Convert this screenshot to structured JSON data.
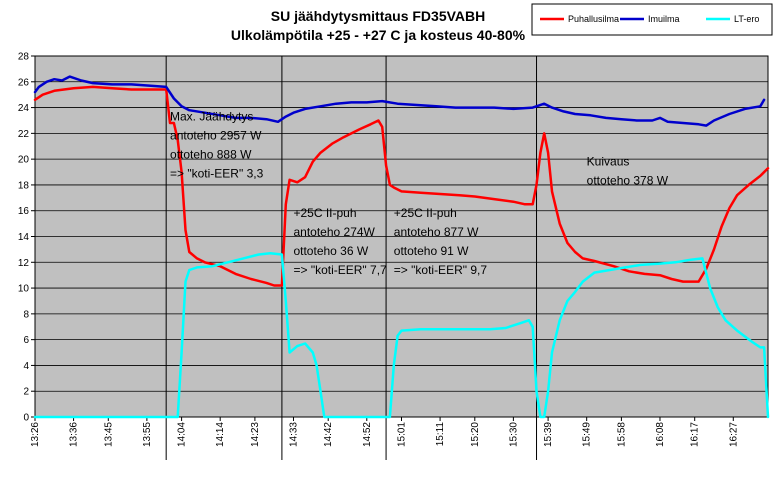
{
  "chart_data": {
    "type": "line",
    "title": "SU jäähdytysmittaus FD35VABH",
    "subtitle": "Ulkolämpötila +25 - +27 C ja kosteus 40-80%",
    "xlabel": "",
    "ylabel": "",
    "ylim": [
      0,
      28
    ],
    "yticks": [
      0,
      2,
      4,
      6,
      8,
      10,
      12,
      14,
      16,
      18,
      20,
      22,
      24,
      26,
      28
    ],
    "xlim": [
      "13:26",
      "16:36"
    ],
    "xticks": [
      "13:26",
      "13:36",
      "13:45",
      "13:55",
      "14:04",
      "14:14",
      "14:23",
      "14:33",
      "14:42",
      "14:52",
      "15:01",
      "15:11",
      "15:20",
      "15:30",
      "15:39",
      "15:49",
      "15:58",
      "16:08",
      "16:17",
      "16:27"
    ],
    "grid": true,
    "legend_position": "top-right",
    "colors": {
      "plot_bg": "#c0c0c0",
      "grid": "#000000"
    },
    "series": [
      {
        "name": "Puhallusilma",
        "color": "#ff0000",
        "points": [
          [
            "13:26",
            24.6
          ],
          [
            "13:28",
            25.0
          ],
          [
            "13:31",
            25.3
          ],
          [
            "13:36",
            25.5
          ],
          [
            "13:41",
            25.6
          ],
          [
            "13:46",
            25.5
          ],
          [
            "13:51",
            25.4
          ],
          [
            "13:56",
            25.4
          ],
          [
            "14:00",
            25.4
          ],
          [
            "14:01",
            22.8
          ],
          [
            "14:02",
            22.8
          ],
          [
            "14:03",
            21.5
          ],
          [
            "14:04",
            19.0
          ],
          [
            "14:05",
            14.5
          ],
          [
            "14:06",
            12.8
          ],
          [
            "14:08",
            12.3
          ],
          [
            "14:10",
            12.0
          ],
          [
            "14:14",
            11.7
          ],
          [
            "14:18",
            11.1
          ],
          [
            "14:22",
            10.7
          ],
          [
            "14:26",
            10.4
          ],
          [
            "14:28",
            10.2
          ],
          [
            "14:30",
            10.2
          ],
          [
            "14:31",
            16.5
          ],
          [
            "14:32",
            18.4
          ],
          [
            "14:34",
            18.2
          ],
          [
            "14:36",
            18.6
          ],
          [
            "14:38",
            19.8
          ],
          [
            "14:40",
            20.5
          ],
          [
            "14:43",
            21.2
          ],
          [
            "14:46",
            21.7
          ],
          [
            "14:50",
            22.3
          ],
          [
            "14:53",
            22.7
          ],
          [
            "14:55",
            23.0
          ],
          [
            "14:56",
            22.5
          ],
          [
            "14:57",
            19.5
          ],
          [
            "14:58",
            18.0
          ],
          [
            "14:59",
            17.8
          ],
          [
            "15:01",
            17.5
          ],
          [
            "15:06",
            17.4
          ],
          [
            "15:11",
            17.3
          ],
          [
            "15:16",
            17.2
          ],
          [
            "15:20",
            17.1
          ],
          [
            "15:25",
            16.9
          ],
          [
            "15:30",
            16.7
          ],
          [
            "15:33",
            16.5
          ],
          [
            "15:35",
            16.5
          ],
          [
            "15:36",
            18.0
          ],
          [
            "15:37",
            20.5
          ],
          [
            "15:38",
            22.0
          ],
          [
            "15:39",
            20.5
          ],
          [
            "15:40",
            17.5
          ],
          [
            "15:42",
            15.0
          ],
          [
            "15:44",
            13.5
          ],
          [
            "15:46",
            12.8
          ],
          [
            "15:48",
            12.3
          ],
          [
            "15:51",
            12.1
          ],
          [
            "15:56",
            11.7
          ],
          [
            "16:00",
            11.3
          ],
          [
            "16:04",
            11.1
          ],
          [
            "16:08",
            11.0
          ],
          [
            "16:11",
            10.7
          ],
          [
            "16:14",
            10.5
          ],
          [
            "16:18",
            10.5
          ],
          [
            "16:20",
            11.5
          ],
          [
            "16:22",
            13.0
          ],
          [
            "16:24",
            14.8
          ],
          [
            "16:26",
            16.2
          ],
          [
            "16:28",
            17.2
          ],
          [
            "16:31",
            18.0
          ],
          [
            "16:34",
            18.7
          ],
          [
            "16:36",
            19.3
          ]
        ]
      },
      {
        "name": "Imuilma",
        "color": "#0000cc",
        "points": [
          [
            "13:26",
            25.2
          ],
          [
            "13:27",
            25.6
          ],
          [
            "13:29",
            26.0
          ],
          [
            "13:31",
            26.2
          ],
          [
            "13:33",
            26.1
          ],
          [
            "13:35",
            26.4
          ],
          [
            "13:38",
            26.1
          ],
          [
            "13:41",
            25.9
          ],
          [
            "13:46",
            25.8
          ],
          [
            "13:51",
            25.8
          ],
          [
            "13:56",
            25.7
          ],
          [
            "14:00",
            25.6
          ],
          [
            "14:02",
            24.7
          ],
          [
            "14:04",
            24.1
          ],
          [
            "14:06",
            23.8
          ],
          [
            "14:10",
            23.6
          ],
          [
            "14:14",
            23.4
          ],
          [
            "14:18",
            23.2
          ],
          [
            "14:22",
            23.2
          ],
          [
            "14:26",
            23.1
          ],
          [
            "14:29",
            22.9
          ],
          [
            "14:31",
            23.3
          ],
          [
            "14:33",
            23.6
          ],
          [
            "14:36",
            23.9
          ],
          [
            "14:40",
            24.1
          ],
          [
            "14:44",
            24.3
          ],
          [
            "14:48",
            24.4
          ],
          [
            "14:52",
            24.4
          ],
          [
            "14:56",
            24.5
          ],
          [
            "15:00",
            24.3
          ],
          [
            "15:05",
            24.2
          ],
          [
            "15:10",
            24.1
          ],
          [
            "15:15",
            24.0
          ],
          [
            "15:20",
            24.0
          ],
          [
            "15:25",
            24.0
          ],
          [
            "15:30",
            23.9
          ],
          [
            "15:35",
            24.0
          ],
          [
            "15:38",
            24.3
          ],
          [
            "15:40",
            24.0
          ],
          [
            "15:43",
            23.7
          ],
          [
            "15:46",
            23.5
          ],
          [
            "15:50",
            23.4
          ],
          [
            "15:54",
            23.2
          ],
          [
            "15:58",
            23.1
          ],
          [
            "16:02",
            23.0
          ],
          [
            "16:06",
            23.0
          ],
          [
            "16:08",
            23.2
          ],
          [
            "16:10",
            22.9
          ],
          [
            "16:14",
            22.8
          ],
          [
            "16:18",
            22.7
          ],
          [
            "16:20",
            22.6
          ],
          [
            "16:22",
            23.0
          ],
          [
            "16:26",
            23.5
          ],
          [
            "16:30",
            23.9
          ],
          [
            "16:34",
            24.1
          ],
          [
            "16:35",
            24.6
          ]
        ]
      },
      {
        "name": "LT-ero",
        "color": "#00ffff",
        "points": [
          [
            "13:26",
            0.0
          ],
          [
            "13:40",
            0.0
          ],
          [
            "13:55",
            0.0
          ],
          [
            "14:03",
            0.0
          ],
          [
            "14:04",
            5.0
          ],
          [
            "14:05",
            10.5
          ],
          [
            "14:06",
            11.4
          ],
          [
            "14:08",
            11.6
          ],
          [
            "14:12",
            11.7
          ],
          [
            "14:16",
            12.0
          ],
          [
            "14:20",
            12.3
          ],
          [
            "14:24",
            12.6
          ],
          [
            "14:27",
            12.7
          ],
          [
            "14:30",
            12.6
          ],
          [
            "14:31",
            9.0
          ],
          [
            "14:32",
            5.0
          ],
          [
            "14:34",
            5.5
          ],
          [
            "14:36",
            5.7
          ],
          [
            "14:38",
            5.0
          ],
          [
            "14:39",
            4.0
          ],
          [
            "14:40",
            2.0
          ],
          [
            "14:41",
            0.0
          ],
          [
            "14:47",
            0.0
          ],
          [
            "14:57",
            0.0
          ],
          [
            "14:58",
            0.0
          ],
          [
            "14:59",
            4.0
          ],
          [
            "15:00",
            6.3
          ],
          [
            "15:01",
            6.7
          ],
          [
            "15:06",
            6.8
          ],
          [
            "15:11",
            6.8
          ],
          [
            "15:16",
            6.8
          ],
          [
            "15:20",
            6.8
          ],
          [
            "15:24",
            6.8
          ],
          [
            "15:28",
            6.9
          ],
          [
            "15:32",
            7.3
          ],
          [
            "15:34",
            7.5
          ],
          [
            "15:35",
            7.0
          ],
          [
            "15:36",
            2.0
          ],
          [
            "15:37",
            0.0
          ],
          [
            "15:38",
            0.0
          ],
          [
            "15:39",
            2.0
          ],
          [
            "15:40",
            5.0
          ],
          [
            "15:42",
            7.5
          ],
          [
            "15:44",
            9.0
          ],
          [
            "15:46",
            9.7
          ],
          [
            "15:48",
            10.5
          ],
          [
            "15:51",
            11.2
          ],
          [
            "15:55",
            11.4
          ],
          [
            "15:59",
            11.6
          ],
          [
            "16:03",
            11.8
          ],
          [
            "16:08",
            11.9
          ],
          [
            "16:12",
            12.0
          ],
          [
            "16:16",
            12.2
          ],
          [
            "16:19",
            12.3
          ],
          [
            "16:21",
            10.0
          ],
          [
            "16:23",
            8.5
          ],
          [
            "16:25",
            7.5
          ],
          [
            "16:28",
            6.7
          ],
          [
            "16:32",
            5.8
          ],
          [
            "16:34",
            5.4
          ],
          [
            "16:35",
            5.4
          ],
          [
            "16:36",
            0.0
          ]
        ]
      }
    ],
    "vlines": [
      "14:00",
      "14:30",
      "14:57",
      "15:36"
    ],
    "annotations": [
      {
        "lines": [
          "Max. Jäähdytys",
          "antoteho 2957 W",
          "ottoteho 888 W",
          "=> \"koti-EER\" 3,3"
        ],
        "at": [
          "14:01",
          23.0
        ]
      },
      {
        "lines": [
          "+25C II-puh",
          "antoteho 274W",
          "ottoteho 36 W",
          "=> \"koti-EER\" 7,7"
        ],
        "at": [
          "14:33",
          15.5
        ]
      },
      {
        "lines": [
          "+25C II-puh",
          "antoteho 877 W",
          "ottoteho 91 W",
          "=> \"koti-EER\" 9,7"
        ],
        "at": [
          "14:59",
          15.5
        ]
      },
      {
        "lines": [
          "Kuivaus",
          "ottoteho 378 W"
        ],
        "at": [
          "15:49",
          19.5
        ]
      }
    ]
  }
}
